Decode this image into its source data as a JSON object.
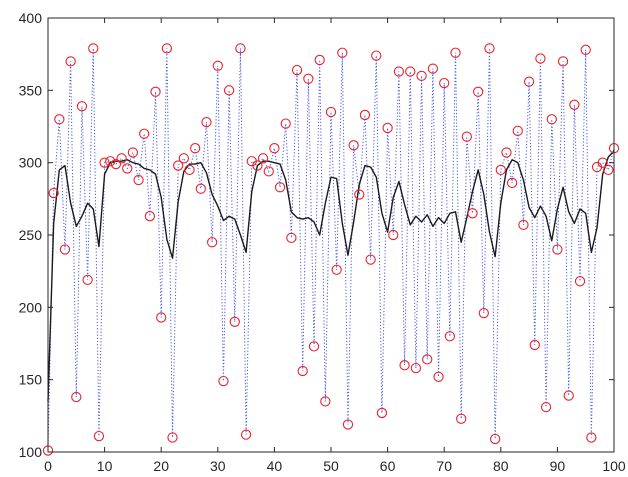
{
  "chart_data": {
    "type": "line",
    "title": "",
    "xlabel": "",
    "ylabel": "",
    "xlim": [
      0,
      100
    ],
    "ylim": [
      100,
      400
    ],
    "grid": false,
    "legend": "none",
    "xticks": [
      "0",
      "10",
      "20",
      "30",
      "40",
      "50",
      "60",
      "70",
      "80",
      "90",
      "100"
    ],
    "yticks": [
      "100",
      "150",
      "200",
      "250",
      "300",
      "350",
      "400"
    ],
    "series": [
      {
        "style": "markers",
        "marker": "circle",
        "line": "dotted",
        "color": "#e8222b",
        "line_color": "#4a55e0",
        "x": [
          0,
          1,
          2,
          3,
          4,
          5,
          6,
          7,
          8,
          9,
          10,
          11,
          12,
          13,
          14,
          15,
          16,
          17,
          18,
          19,
          20,
          21,
          22,
          23,
          24,
          25,
          26,
          27,
          28,
          29,
          30,
          31,
          32,
          33,
          34,
          35,
          36,
          37,
          38,
          39,
          40,
          41,
          42,
          43,
          44,
          45,
          46,
          47,
          48,
          49,
          50,
          51,
          52,
          53,
          54,
          55,
          56,
          57,
          58,
          59,
          60,
          61,
          62,
          63,
          64,
          65,
          66,
          67,
          68,
          69,
          70,
          71,
          72,
          73,
          74,
          75,
          76,
          77,
          78,
          79,
          80,
          81,
          82,
          83,
          84,
          85,
          86,
          87,
          88,
          89,
          90,
          91,
          92,
          93,
          94,
          95,
          96,
          97,
          98,
          99,
          100
        ],
        "values": [
          101,
          279,
          330,
          240,
          370,
          138,
          339,
          219,
          379,
          111,
          300,
          301,
          299,
          303,
          296,
          307,
          288,
          320,
          263,
          349,
          193,
          379,
          110,
          298,
          303,
          295,
          310,
          282,
          328,
          245,
          367,
          149,
          350,
          190,
          379,
          112,
          301,
          298,
          303,
          294,
          310,
          283,
          327,
          248,
          364,
          156,
          358,
          173,
          371,
          135,
          335,
          226,
          376,
          119,
          312,
          278,
          333,
          233,
          374,
          127,
          324,
          250,
          363,
          160,
          363,
          158,
          360,
          164,
          365,
          152,
          355,
          180,
          376,
          123,
          318,
          265,
          349,
          196,
          379,
          109,
          295,
          307,
          286,
          322,
          257,
          356,
          174,
          372,
          131,
          330,
          240,
          370,
          139,
          340,
          218,
          378,
          110,
          297,
          300,
          295,
          310
        ]
      },
      {
        "style": "line",
        "color": "#1a1a1a",
        "x": [
          0,
          1,
          2,
          3,
          4,
          5,
          6,
          7,
          8,
          9,
          10,
          11,
          12,
          13,
          14,
          15,
          16,
          17,
          18,
          19,
          20,
          21,
          22,
          23,
          24,
          25,
          26,
          27,
          28,
          29,
          30,
          31,
          32,
          33,
          34,
          35,
          36,
          37,
          38,
          39,
          40,
          41,
          42,
          43,
          44,
          45,
          46,
          47,
          48,
          49,
          50,
          51,
          52,
          53,
          54,
          55,
          56,
          57,
          58,
          59,
          60,
          61,
          62,
          63,
          64,
          65,
          66,
          67,
          68,
          69,
          70,
          71,
          72,
          73,
          74,
          75,
          76,
          77,
          78,
          79,
          80,
          81,
          82,
          83,
          84,
          85,
          86,
          87,
          88,
          89,
          90,
          91,
          92,
          93,
          94,
          95,
          96,
          97,
          98,
          99,
          100
        ],
        "values": [
          135,
          258,
          295,
          298,
          272,
          256,
          263,
          272,
          268,
          242,
          292,
          300,
          301,
          301,
          302,
          300,
          299,
          296,
          295,
          292,
          276,
          247,
          234,
          273,
          294,
          299,
          299,
          300,
          293,
          278,
          270,
          260,
          263,
          261,
          250,
          238,
          280,
          298,
          301,
          301,
          300,
          299,
          288,
          266,
          262,
          261,
          262,
          259,
          250,
          272,
          290,
          289,
          258,
          236,
          259,
          285,
          298,
          297,
          290,
          265,
          252,
          276,
          287,
          271,
          257,
          263,
          259,
          264,
          256,
          262,
          258,
          265,
          266,
          245,
          262,
          280,
          295,
          278,
          252,
          235,
          272,
          295,
          302,
          300,
          288,
          269,
          262,
          270,
          263,
          246,
          268,
          283,
          266,
          258,
          268,
          265,
          238,
          255,
          292,
          304,
          308
        ]
      }
    ]
  }
}
